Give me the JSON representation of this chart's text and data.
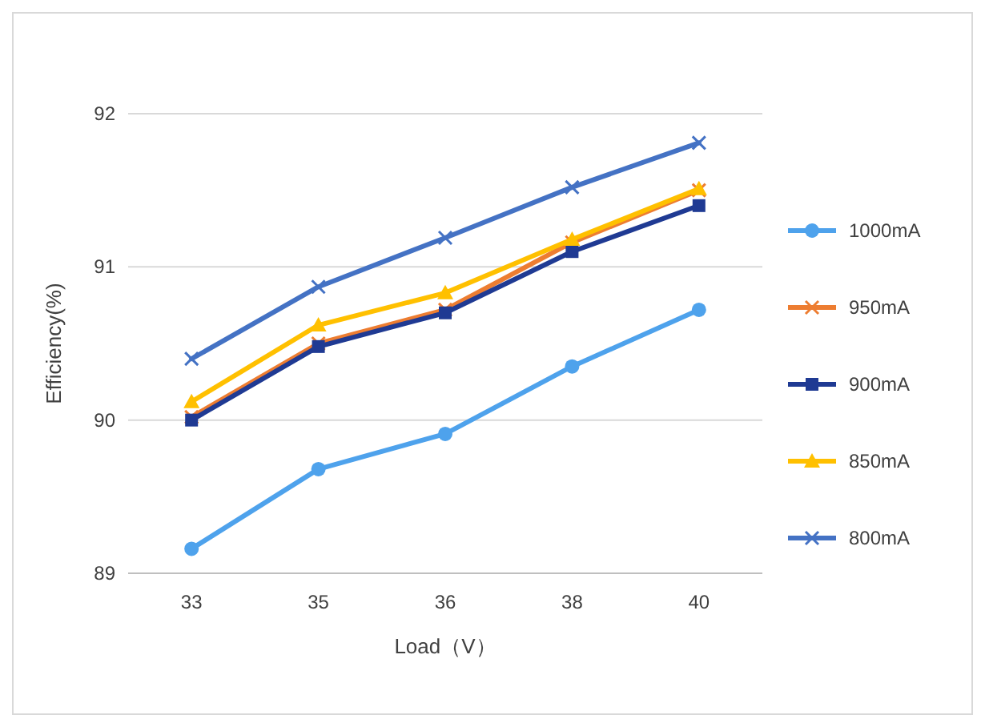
{
  "chart_data": {
    "type": "line",
    "xlabel": "Load（V）",
    "ylabel": "Efficiency(%)",
    "categories": [
      "33",
      "35",
      "36",
      "38",
      "40"
    ],
    "ylim": [
      89,
      92
    ],
    "yticks": [
      89,
      90,
      91,
      92
    ],
    "grid": "y",
    "legend": "right",
    "series": [
      {
        "name": "1000mA",
        "color": "#4ea2ec",
        "marker": "circle",
        "values": [
          89.16,
          89.68,
          89.91,
          90.35,
          90.72
        ]
      },
      {
        "name": "950mA",
        "color": "#ed7d31",
        "marker": "cross",
        "values": [
          90.02,
          90.5,
          90.72,
          91.16,
          91.5
        ]
      },
      {
        "name": "900mA",
        "color": "#1f3a93",
        "marker": "square",
        "values": [
          90.0,
          90.48,
          90.7,
          91.1,
          91.4
        ]
      },
      {
        "name": "850mA",
        "color": "#ffc000",
        "marker": "triangle",
        "values": [
          90.12,
          90.62,
          90.83,
          91.18,
          91.51
        ]
      },
      {
        "name": "800mA",
        "color": "#4472c4",
        "marker": "cross",
        "values": [
          90.4,
          90.87,
          91.19,
          91.52,
          91.81
        ]
      }
    ]
  }
}
